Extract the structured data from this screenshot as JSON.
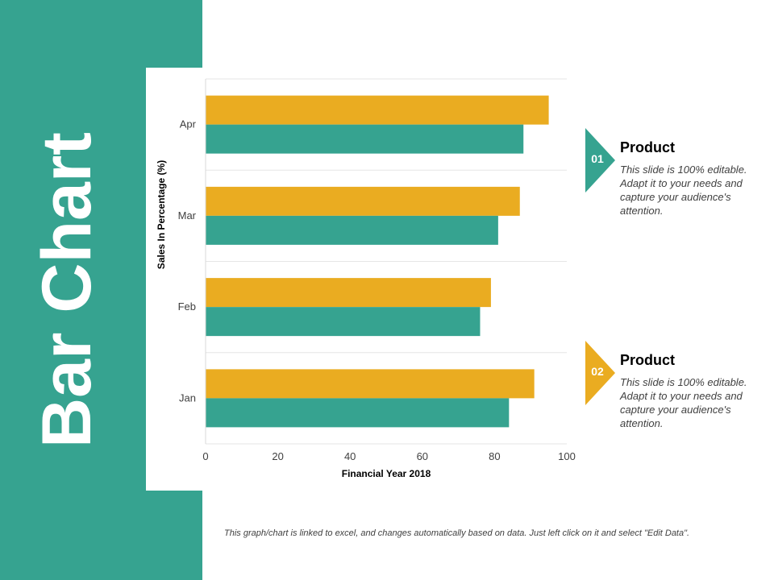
{
  "slide": {
    "title": "Bar Chart",
    "footnote": "This graph/chart is linked to excel, and changes automatically based on data. Just left click on it and select \"Edit Data\"."
  },
  "colors": {
    "sidebar": "#36A390",
    "series_1": "#EAAC21",
    "series_2": "#36A390",
    "marker_1": "#36A390",
    "marker_2": "#EAAC21"
  },
  "info_blocks": [
    {
      "number": "01",
      "heading": "Product",
      "text": "This slide is 100% editable. Adapt it to your needs and capture your audience's attention."
    },
    {
      "number": "02",
      "heading": "Product",
      "text": "This slide is 100% editable. Adapt it to your needs and capture your audience's attention."
    }
  ],
  "chart_data": {
    "type": "bar",
    "orientation": "horizontal",
    "title": "",
    "xlabel": "Financial Year 2018",
    "ylabel": "Sales In Percentage (%)",
    "categories": [
      "Jan",
      "Feb",
      "Mar",
      "Apr"
    ],
    "xlim": [
      0,
      100
    ],
    "xticks": [
      0,
      20,
      40,
      60,
      80,
      100
    ],
    "grid": true,
    "legend": "none",
    "series": [
      {
        "values": [
          91,
          79,
          87,
          95
        ]
      },
      {
        "values": [
          84,
          76,
          81,
          88
        ]
      }
    ]
  }
}
